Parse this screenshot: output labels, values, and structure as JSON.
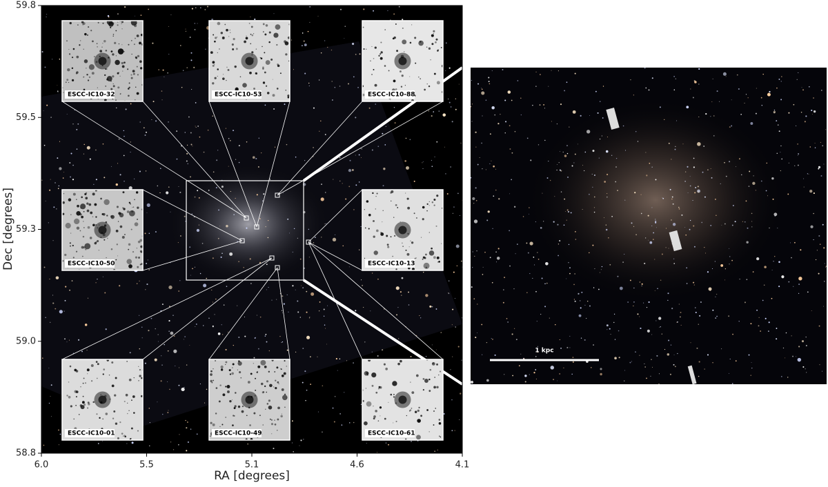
{
  "chart_data": {
    "type": "image",
    "x_label": "RA [degrees]",
    "y_label": "Dec [degrees]",
    "xlim": [
      6,
      4.1
    ],
    "ylim": [
      58.8,
      59.8
    ],
    "xticks": [
      {
        "value": 6,
        "label": "6.0"
      },
      {
        "value": 5.525,
        "label": "5.5"
      },
      {
        "value": 5.05,
        "label": "5.1"
      },
      {
        "value": 4.575,
        "label": "4.6"
      },
      4.1
    ],
    "yticks": [
      58.8,
      {
        "value": 59.05,
        "label": "59.0"
      },
      59.3,
      {
        "value": 59.55,
        "label": "59.5"
      },
      59.8
    ],
    "insets": [
      "ESCC-IC10-32",
      "ESCC-IC10-53",
      "ESCC-IC10-88",
      "ESCC-IC10-50",
      "ESCC-IC10-13",
      "ESCC-IC10-01",
      "ESCC-IC10-49",
      "ESCC-IC10-61"
    ],
    "scale_bar": "1 kpc"
  }
}
